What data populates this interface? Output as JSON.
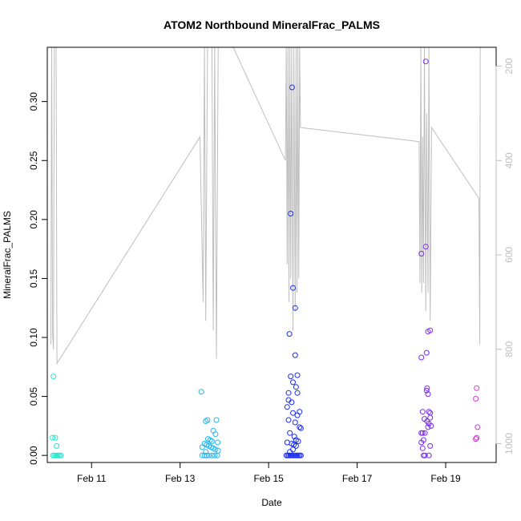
{
  "chart_data": {
    "type": "scatter",
    "title": "ATOM2 Northbound MineralFrac_PALMS",
    "xlabel": "Date",
    "ylabel": "MineralFrac_PALMS",
    "x_ticks": [
      {
        "day": 11,
        "label": "Feb 11"
      },
      {
        "day": 13,
        "label": "Feb 13"
      },
      {
        "day": 15,
        "label": "Feb 15"
      },
      {
        "day": 17,
        "label": "Feb 17"
      },
      {
        "day": 19,
        "label": "Feb 19"
      }
    ],
    "xlim": [
      10.0,
      20.14
    ],
    "ylim": [
      -0.006,
      0.346
    ],
    "y_ticks": [
      "0.00",
      "0.05",
      "0.10",
      "0.15",
      "0.20",
      "0.25",
      "0.30"
    ],
    "right_axis": {
      "quantity": "pressure (reversed)",
      "lim": [
        1040,
        160
      ],
      "ticks": [
        "200",
        "400",
        "600",
        "800",
        "1000"
      ],
      "color": "#bebebe"
    },
    "colors": {
      "axis": "#000000",
      "secondary_line": "#bebebe",
      "flight_1": "#22e8d0",
      "flight_2": "#1fb8f0",
      "flight_3": "#1a2ef5",
      "flight_4": "#7a2af0",
      "flight_5": "#cc3ad8"
    },
    "series": [
      {
        "color": "#22e8d0",
        "points": [
          [
            10.14,
            0.067
          ],
          [
            10.12,
            0.015
          ],
          [
            10.18,
            0.015
          ],
          [
            10.21,
            0.008
          ],
          [
            10.13,
            0.0
          ],
          [
            10.16,
            0.0
          ],
          [
            10.19,
            0.0
          ],
          [
            10.22,
            0.0
          ],
          [
            10.25,
            0.0
          ],
          [
            10.28,
            0.0
          ],
          [
            10.31,
            0.0
          ]
        ]
      },
      {
        "color": "#1fb8f0",
        "points": [
          [
            13.48,
            0.054
          ],
          [
            13.58,
            0.029
          ],
          [
            13.62,
            0.03
          ],
          [
            13.82,
            0.03
          ],
          [
            13.75,
            0.021
          ],
          [
            13.8,
            0.018
          ],
          [
            13.63,
            0.014
          ],
          [
            13.68,
            0.013
          ],
          [
            13.72,
            0.012
          ],
          [
            13.55,
            0.01
          ],
          [
            13.85,
            0.011
          ],
          [
            13.6,
            0.009
          ],
          [
            13.65,
            0.008
          ],
          [
            13.7,
            0.007
          ],
          [
            13.75,
            0.006
          ],
          [
            13.5,
            0.007
          ],
          [
            13.8,
            0.005
          ],
          [
            13.86,
            0.004
          ],
          [
            13.58,
            0.003
          ],
          [
            13.5,
            0.0
          ],
          [
            13.55,
            0.0
          ],
          [
            13.6,
            0.0
          ],
          [
            13.65,
            0.0
          ],
          [
            13.72,
            0.0
          ],
          [
            13.78,
            0.0
          ],
          [
            13.84,
            0.0
          ]
        ]
      },
      {
        "color": "#1a2ef5",
        "points": [
          [
            15.53,
            0.312
          ],
          [
            15.5,
            0.205
          ],
          [
            15.55,
            0.142
          ],
          [
            15.6,
            0.125
          ],
          [
            15.47,
            0.103
          ],
          [
            15.6,
            0.085
          ],
          [
            15.5,
            0.067
          ],
          [
            15.65,
            0.068
          ],
          [
            15.55,
            0.062
          ],
          [
            15.62,
            0.058
          ],
          [
            15.45,
            0.053
          ],
          [
            15.65,
            0.053
          ],
          [
            15.45,
            0.047
          ],
          [
            15.52,
            0.045
          ],
          [
            15.42,
            0.041
          ],
          [
            15.7,
            0.037
          ],
          [
            15.55,
            0.036
          ],
          [
            15.65,
            0.034
          ],
          [
            15.45,
            0.03
          ],
          [
            15.6,
            0.028
          ],
          [
            15.7,
            0.024
          ],
          [
            15.73,
            0.023
          ],
          [
            15.48,
            0.019
          ],
          [
            15.58,
            0.016
          ],
          [
            15.62,
            0.013
          ],
          [
            15.67,
            0.012
          ],
          [
            15.42,
            0.011
          ],
          [
            15.52,
            0.01
          ],
          [
            15.57,
            0.009
          ],
          [
            15.62,
            0.008
          ],
          [
            15.55,
            0.005
          ],
          [
            15.48,
            0.003
          ],
          [
            15.4,
            0.0
          ],
          [
            15.43,
            0.0
          ],
          [
            15.46,
            0.0
          ],
          [
            15.49,
            0.0
          ],
          [
            15.52,
            0.0
          ],
          [
            15.55,
            0.0
          ],
          [
            15.58,
            0.0
          ],
          [
            15.61,
            0.0
          ],
          [
            15.64,
            0.0
          ],
          [
            15.67,
            0.0
          ],
          [
            15.7,
            0.0
          ],
          [
            15.73,
            0.0
          ]
        ]
      },
      {
        "color": "#7a2af0",
        "points": [
          [
            18.55,
            0.334
          ],
          [
            18.55,
            0.177
          ],
          [
            18.45,
            0.171
          ],
          [
            18.65,
            0.106
          ],
          [
            18.6,
            0.105
          ],
          [
            18.57,
            0.087
          ],
          [
            18.45,
            0.083
          ],
          [
            18.58,
            0.057
          ],
          [
            18.57,
            0.055
          ],
          [
            18.6,
            0.052
          ],
          [
            18.48,
            0.037
          ],
          [
            18.62,
            0.037
          ],
          [
            18.65,
            0.036
          ],
          [
            18.52,
            0.031
          ],
          [
            18.65,
            0.032
          ],
          [
            18.58,
            0.029
          ],
          [
            18.62,
            0.027
          ],
          [
            18.67,
            0.025
          ],
          [
            18.6,
            0.024
          ],
          [
            18.45,
            0.019
          ],
          [
            18.48,
            0.019
          ],
          [
            18.53,
            0.019
          ],
          [
            18.5,
            0.013
          ],
          [
            18.45,
            0.011
          ],
          [
            18.65,
            0.008
          ],
          [
            18.48,
            0.006
          ],
          [
            18.5,
            0.0
          ],
          [
            18.53,
            0.0
          ],
          [
            18.62,
            0.0
          ]
        ]
      },
      {
        "color": "#cc3ad8",
        "points": [
          [
            19.7,
            0.057
          ],
          [
            19.68,
            0.048
          ],
          [
            19.72,
            0.024
          ],
          [
            19.7,
            0.015
          ],
          [
            19.68,
            0.014
          ]
        ]
      }
    ],
    "secondary_line": {
      "note": "pressure trace on right axis (day, pressure)",
      "points": [
        [
          10.08,
          790
        ],
        [
          10.1,
          160
        ],
        [
          10.12,
          770
        ],
        [
          10.14,
          800
        ],
        [
          10.16,
          160
        ],
        [
          10.2,
          160
        ],
        [
          10.22,
          830
        ],
        [
          13.45,
          350
        ],
        [
          13.52,
          700
        ],
        [
          13.55,
          160
        ],
        [
          13.58,
          740
        ],
        [
          13.62,
          160
        ],
        [
          13.72,
          160
        ],
        [
          13.75,
          760
        ],
        [
          13.78,
          160
        ],
        [
          13.82,
          820
        ],
        [
          13.86,
          160
        ],
        [
          14.2,
          160
        ],
        [
          15.38,
          400
        ],
        [
          15.4,
          160
        ],
        [
          15.42,
          620
        ],
        [
          15.44,
          160
        ],
        [
          15.46,
          700
        ],
        [
          15.48,
          160
        ],
        [
          15.5,
          650
        ],
        [
          15.52,
          160
        ],
        [
          15.55,
          760
        ],
        [
          15.57,
          160
        ],
        [
          15.6,
          720
        ],
        [
          15.62,
          160
        ],
        [
          15.64,
          680
        ],
        [
          15.66,
          160
        ],
        [
          15.68,
          650
        ],
        [
          15.7,
          160
        ],
        [
          15.72,
          330
        ],
        [
          18.4,
          360
        ],
        [
          18.42,
          660
        ],
        [
          18.44,
          160
        ],
        [
          18.46,
          680
        ],
        [
          18.48,
          350
        ],
        [
          18.5,
          660
        ],
        [
          18.52,
          160
        ],
        [
          18.55,
          720
        ],
        [
          18.57,
          300
        ],
        [
          18.6,
          680
        ],
        [
          18.62,
          160
        ],
        [
          18.65,
          740
        ],
        [
          18.68,
          330
        ],
        [
          19.75,
          480
        ],
        [
          19.77,
          790
        ],
        [
          19.78,
          160
        ]
      ]
    }
  }
}
